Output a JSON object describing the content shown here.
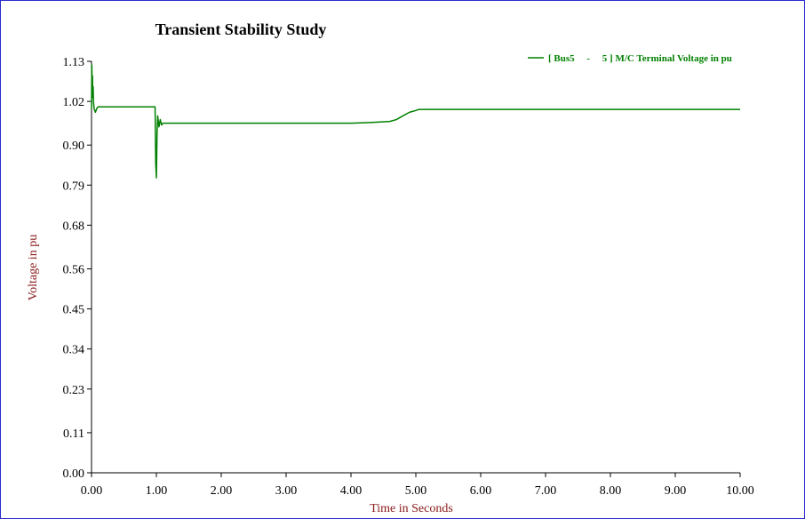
{
  "chart_data": {
    "type": "line",
    "title": "Transient Stability Study",
    "xlabel": "Time in Seconds",
    "ylabel": "Voltage in pu",
    "xlim": [
      0,
      10
    ],
    "ylim": [
      0,
      1.13
    ],
    "x_ticks": [
      0,
      1,
      2,
      3,
      4,
      5,
      6,
      7,
      8,
      9,
      10
    ],
    "x_tick_labels": [
      "0.00",
      "1.00",
      "2.00",
      "3.00",
      "4.00",
      "5.00",
      "6.00",
      "7.00",
      "8.00",
      "9.00",
      "10.00"
    ],
    "y_ticks": [
      0,
      0.11,
      0.23,
      0.34,
      0.45,
      0.56,
      0.68,
      0.79,
      0.9,
      1.02,
      1.13
    ],
    "y_tick_labels": [
      "0.00",
      "0.11",
      "0.23",
      "0.34",
      "0.45",
      "0.56",
      "0.68",
      "0.79",
      "0.90",
      "1.02",
      "1.13"
    ],
    "grid": false,
    "legend": "top-right",
    "series": [
      {
        "name": "[ Bus5     -     5 ] M/C Terminal Voltage in pu",
        "color": "#008000",
        "x": [
          0.0,
          0.005,
          0.01,
          0.015,
          0.02,
          0.025,
          0.03,
          0.04,
          0.06,
          0.08,
          0.1,
          0.2,
          0.5,
          0.98,
          0.99,
          1.0,
          1.01,
          1.02,
          1.04,
          1.06,
          1.08,
          1.1,
          1.2,
          2.0,
          3.0,
          4.0,
          4.3,
          4.6,
          4.7,
          4.8,
          4.9,
          5.0,
          5.05,
          5.1,
          6.0,
          7.0,
          8.0,
          9.0,
          10.0
        ],
        "y": [
          1.0,
          1.12,
          1.05,
          1.09,
          1.03,
          1.06,
          1.02,
          1.0,
          0.99,
          1.0,
          1.005,
          1.005,
          1.005,
          1.005,
          0.85,
          0.81,
          0.93,
          0.98,
          0.95,
          0.97,
          0.955,
          0.96,
          0.96,
          0.96,
          0.96,
          0.96,
          0.962,
          0.965,
          0.97,
          0.98,
          0.99,
          0.995,
          0.998,
          0.998,
          0.998,
          0.998,
          0.998,
          0.998,
          0.998
        ]
      }
    ]
  }
}
